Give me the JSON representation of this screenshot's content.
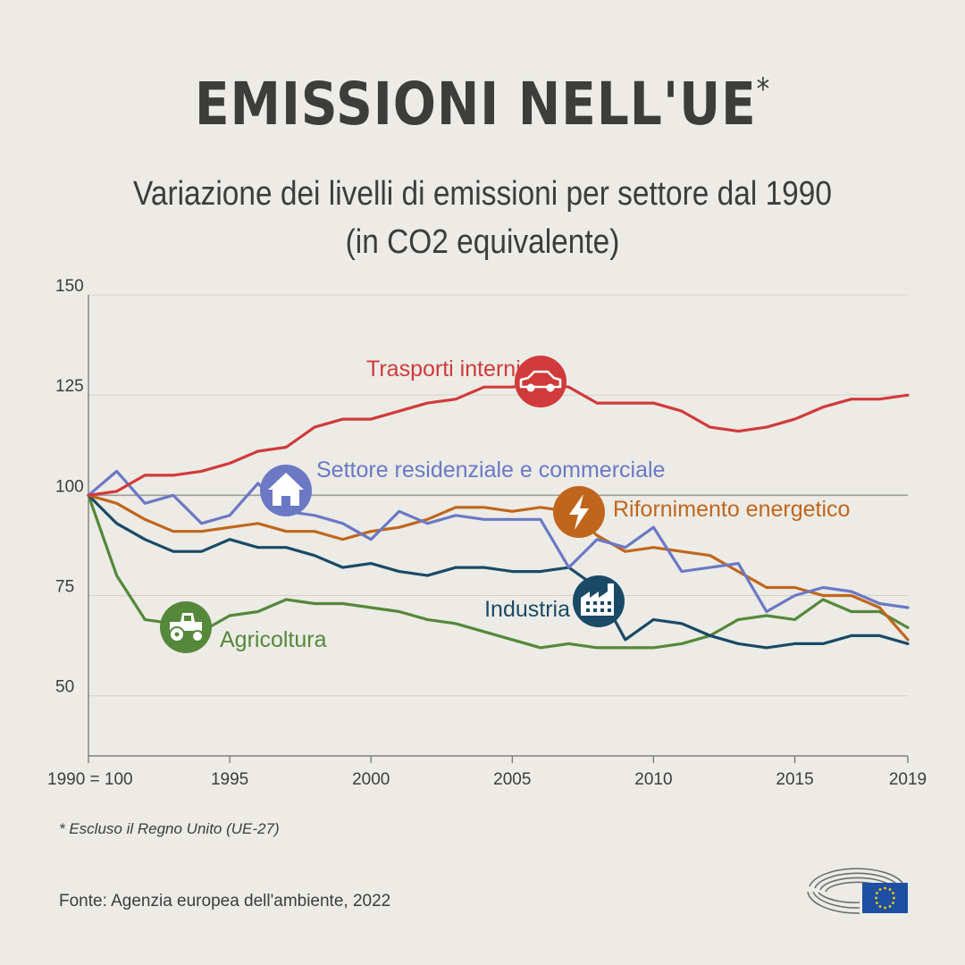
{
  "header": {
    "title": "EMISSIONI NELL'UE",
    "title_mark": "*",
    "subtitle_line1": "Variazione dei livelli di emissioni per settore dal 1990",
    "subtitle_line2": "(in CO2 equivalente)"
  },
  "footer": {
    "footnote": "* Escluso il Regno Unito (UE-27)",
    "source": "Fonte: Agenzia europea dell'ambiente, 2022"
  },
  "chart_data": {
    "type": "line",
    "x": [
      1990,
      1991,
      1992,
      1993,
      1994,
      1995,
      1996,
      1997,
      1998,
      1999,
      2000,
      2001,
      2002,
      2003,
      2004,
      2005,
      2006,
      2007,
      2008,
      2009,
      2010,
      2011,
      2012,
      2013,
      2014,
      2015,
      2016,
      2017,
      2018,
      2019
    ],
    "xlim": [
      1990,
      2019
    ],
    "ylim": [
      35,
      150
    ],
    "yticks": [
      50,
      75,
      100,
      125,
      150
    ],
    "ytick_labels": [
      "50",
      "75",
      "100",
      "125",
      "150"
    ],
    "xticks": [
      1990,
      1995,
      2000,
      2005,
      2010,
      2015,
      2019
    ],
    "xtick_labels": [
      "1990 = 100",
      "1995",
      "2000",
      "2005",
      "2010",
      "2015",
      "2019"
    ],
    "reference_line": 100,
    "grid": true,
    "series": [
      {
        "name": "Trasporti interni",
        "color": "#d13a3a",
        "icon": "car-icon",
        "values": [
          100,
          101,
          105,
          105,
          106,
          108,
          111,
          112,
          117,
          119,
          119,
          121,
          123,
          124,
          127,
          127,
          128,
          127,
          123,
          123,
          123,
          121,
          117,
          116,
          117,
          119,
          122,
          124,
          124,
          125
        ]
      },
      {
        "name": "Settore residenziale e commerciale",
        "color": "#6b78c4",
        "icon": "house-icon",
        "values": [
          100,
          106,
          98,
          100,
          93,
          95,
          103,
          96,
          95,
          93,
          89,
          96,
          93,
          95,
          94,
          94,
          94,
          82,
          89,
          87,
          92,
          81,
          82,
          83,
          71,
          75,
          77,
          76,
          73,
          72
        ]
      },
      {
        "name": "Rifornimento energetico",
        "color": "#c0661c",
        "icon": "lightning-icon",
        "values": [
          100,
          98,
          94,
          91,
          91,
          92,
          93,
          91,
          91,
          89,
          91,
          92,
          94,
          97,
          97,
          96,
          97,
          96,
          90,
          86,
          87,
          86,
          85,
          81,
          77,
          77,
          75,
          75,
          72,
          64
        ]
      },
      {
        "name": "Industria",
        "color": "#1a4a66",
        "icon": "factory-icon",
        "values": [
          100,
          93,
          89,
          86,
          86,
          89,
          87,
          87,
          85,
          82,
          83,
          81,
          80,
          82,
          82,
          81,
          81,
          82,
          77,
          64,
          69,
          68,
          65,
          63,
          62,
          63,
          63,
          65,
          65,
          63
        ]
      },
      {
        "name": "Agricoltura",
        "color": "#55883a",
        "icon": "tractor-icon",
        "values": [
          100,
          80,
          69,
          68,
          66,
          70,
          71,
          74,
          73,
          73,
          72,
          71,
          69,
          68,
          66,
          64,
          62,
          63,
          62,
          62,
          62,
          63,
          65,
          69,
          70,
          69,
          74,
          71,
          71,
          67
        ]
      }
    ]
  }
}
